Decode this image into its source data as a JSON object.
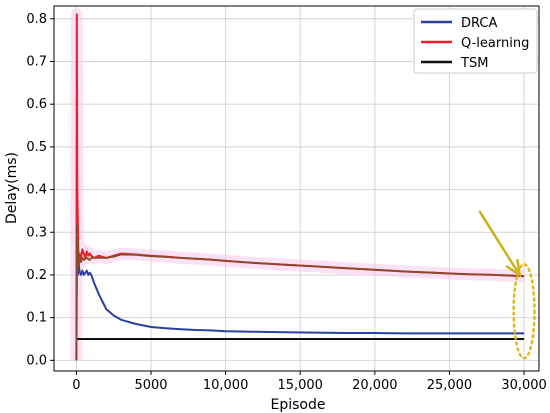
{
  "chart_data": {
    "type": "line",
    "title": "",
    "xlabel": "Episode",
    "ylabel": "Delay(ms)",
    "xlim": [
      -1500,
      31000
    ],
    "ylim": [
      -0.025,
      0.83
    ],
    "grid": true,
    "legend_position": "top-right",
    "x_ticks": [
      0,
      5000,
      10000,
      15000,
      20000,
      25000,
      30000
    ],
    "x_tick_labels": [
      "0",
      "5000",
      "10,000",
      "15,000",
      "20,000",
      "25,000",
      "30,000"
    ],
    "y_ticks": [
      0.0,
      0.1,
      0.2,
      0.3,
      0.4,
      0.5,
      0.6,
      0.7,
      0.8
    ],
    "y_tick_labels": [
      "0.0",
      "0.1",
      "0.2",
      "0.3",
      "0.4",
      "0.5",
      "0.6",
      "0.7",
      "0.8"
    ],
    "series": [
      {
        "name": "DRCA",
        "color": "#2b3f9c",
        "x": [
          0,
          50,
          100,
          150,
          200,
          300,
          400,
          500,
          600,
          700,
          800,
          900,
          1000,
          1200,
          1500,
          2000,
          2500,
          3000,
          3500,
          4000,
          5000,
          6000,
          7000,
          8000,
          9000,
          10000,
          12000,
          14000,
          16000,
          18000,
          20000,
          22000,
          24000,
          26000,
          28000,
          30000
        ],
        "y": [
          0.0,
          0.3,
          0.2,
          0.23,
          0.21,
          0.2,
          0.21,
          0.2,
          0.205,
          0.21,
          0.2,
          0.205,
          0.2,
          0.18,
          0.155,
          0.12,
          0.105,
          0.095,
          0.09,
          0.085,
          0.078,
          0.075,
          0.073,
          0.071,
          0.07,
          0.068,
          0.067,
          0.066,
          0.065,
          0.064,
          0.064,
          0.063,
          0.063,
          0.063,
          0.063,
          0.063
        ]
      },
      {
        "name": "Q-learning",
        "color": "#e8202a",
        "x": [
          0,
          30,
          60,
          100,
          150,
          200,
          300,
          400,
          500,
          600,
          700,
          800,
          900,
          1000,
          1200,
          1500,
          2000,
          2500,
          3000,
          4000,
          5000,
          6000,
          7000,
          8000,
          9000,
          10000,
          12000,
          14000,
          16000,
          18000,
          20000,
          22000,
          24000,
          26000,
          28000,
          30000
        ],
        "y": [
          0.0,
          0.81,
          0.4,
          0.32,
          0.22,
          0.25,
          0.24,
          0.26,
          0.25,
          0.24,
          0.255,
          0.245,
          0.25,
          0.245,
          0.24,
          0.245,
          0.24,
          0.245,
          0.25,
          0.248,
          0.245,
          0.243,
          0.24,
          0.238,
          0.236,
          0.233,
          0.228,
          0.224,
          0.22,
          0.216,
          0.212,
          0.208,
          0.205,
          0.202,
          0.2,
          0.197
        ]
      },
      {
        "name": "TSM",
        "color": "#111111",
        "x": [
          0,
          30000
        ],
        "y": [
          0.05,
          0.05
        ]
      }
    ],
    "overlay_series": {
      "color": "#8b4a2b",
      "x": [
        0,
        30,
        60,
        100,
        150,
        200,
        300,
        400,
        500,
        700,
        900,
        1000,
        1500,
        2000,
        2500,
        3000,
        4000,
        5000,
        6000,
        7000,
        8000,
        9000,
        10000,
        12000,
        14000,
        16000,
        18000,
        20000,
        22000,
        24000,
        26000,
        28000,
        30000
      ],
      "y": [
        0.0,
        0.32,
        0.2,
        0.28,
        0.22,
        0.24,
        0.23,
        0.24,
        0.235,
        0.24,
        0.235,
        0.24,
        0.24,
        0.24,
        0.243,
        0.248,
        0.247,
        0.244,
        0.242,
        0.24,
        0.238,
        0.236,
        0.233,
        0.228,
        0.224,
        0.22,
        0.216,
        0.212,
        0.208,
        0.205,
        0.202,
        0.2,
        0.197
      ]
    },
    "annotation": {
      "arrow_color": "#c9b418",
      "ellipse_color": "#e0b81e",
      "arrow_from": [
        27000,
        0.35
      ],
      "arrow_to": [
        29700,
        0.2
      ],
      "ellipse_center": [
        30000,
        0.115
      ],
      "ellipse_rx_data": 700,
      "ellipse_ry_data": 0.11
    }
  }
}
